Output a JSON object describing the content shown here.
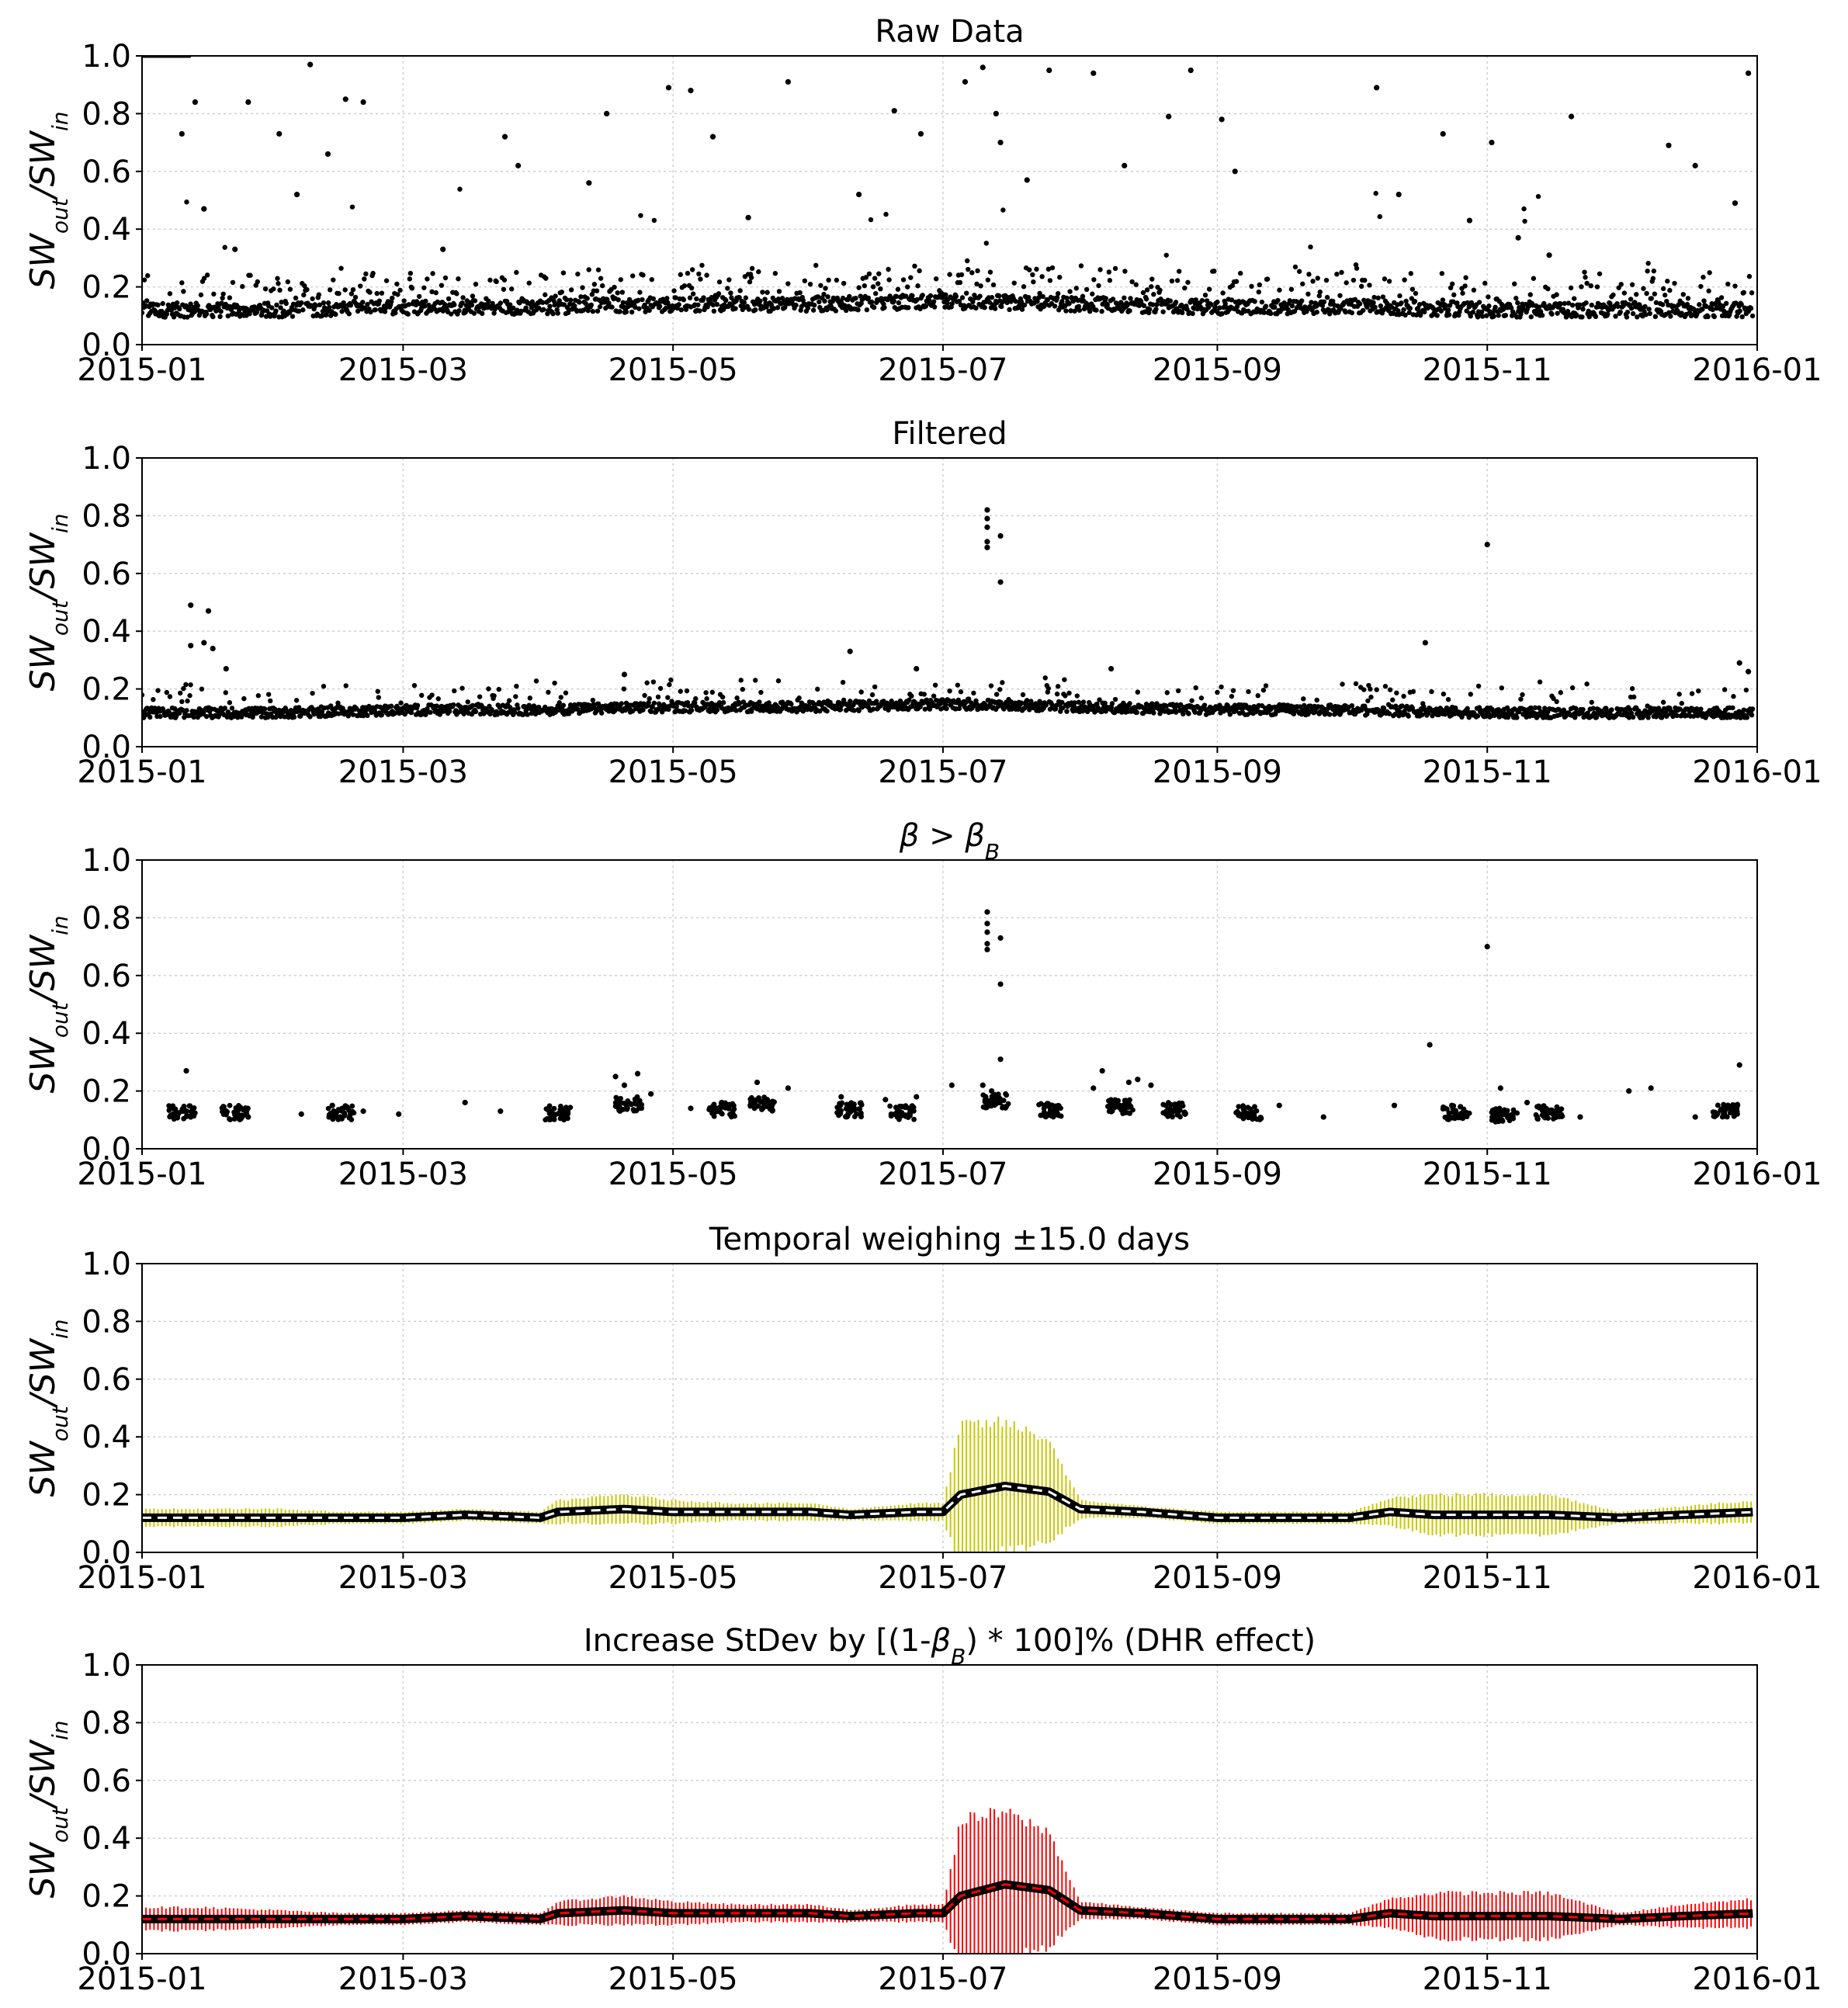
{
  "chart_data": [
    {
      "type": "scatter",
      "panel": "raw",
      "title": "Raw Data",
      "ylabel": {
        "base1": "SW",
        "sub1": "out",
        "sep": "/",
        "base2": "SW",
        "sub2": "in"
      },
      "ylim": [
        0,
        1
      ],
      "xlim": [
        "2015-01-01",
        "2016-01-01"
      ],
      "yticks": [
        "0.0",
        "0.2",
        "0.4",
        "0.6",
        "0.8",
        "1.0"
      ],
      "xticks": [
        "2015-01",
        "2015-03",
        "2015-05",
        "2015-07",
        "2015-09",
        "2015-11",
        "2016-01"
      ],
      "grid": true,
      "color": "#000000",
      "baseline": {
        "x": [
          "2015-01-01",
          "2015-02-01",
          "2015-03-01",
          "2015-04-01",
          "2015-05-01",
          "2015-06-01",
          "2015-07-01",
          "2015-08-01",
          "2015-09-01",
          "2015-10-01",
          "2015-11-01",
          "2015-12-01",
          "2016-01-01"
        ],
        "y": [
          0.11,
          0.11,
          0.12,
          0.12,
          0.13,
          0.13,
          0.14,
          0.13,
          0.12,
          0.12,
          0.11,
          0.11,
          0.11
        ]
      },
      "scatter_points": [
        {
          "x": "2015-01-13",
          "y": 0.84
        },
        {
          "x": "2015-01-25",
          "y": 0.84
        },
        {
          "x": "2015-02-08",
          "y": 0.97
        },
        {
          "x": "2015-02-16",
          "y": 0.85
        },
        {
          "x": "2015-02-20",
          "y": 0.84
        },
        {
          "x": "2015-01-10",
          "y": 0.73
        },
        {
          "x": "2015-02-01",
          "y": 0.73
        },
        {
          "x": "2015-02-12",
          "y": 0.66
        },
        {
          "x": "2015-03-24",
          "y": 0.72
        },
        {
          "x": "2015-03-27",
          "y": 0.62
        },
        {
          "x": "2015-04-16",
          "y": 0.8
        },
        {
          "x": "2015-04-30",
          "y": 0.89
        },
        {
          "x": "2015-05-05",
          "y": 0.88
        },
        {
          "x": "2015-05-10",
          "y": 0.72
        },
        {
          "x": "2015-05-27",
          "y": 0.91
        },
        {
          "x": "2015-06-20",
          "y": 0.81
        },
        {
          "x": "2015-06-26",
          "y": 0.73
        },
        {
          "x": "2015-07-06",
          "y": 0.91
        },
        {
          "x": "2015-07-10",
          "y": 0.96
        },
        {
          "x": "2015-07-13",
          "y": 0.8
        },
        {
          "x": "2015-07-14",
          "y": 0.7
        },
        {
          "x": "2015-07-25",
          "y": 0.95
        },
        {
          "x": "2015-08-04",
          "y": 0.94
        },
        {
          "x": "2015-08-21",
          "y": 0.79
        },
        {
          "x": "2015-08-26",
          "y": 0.95
        },
        {
          "x": "2015-09-02",
          "y": 0.78
        },
        {
          "x": "2015-10-07",
          "y": 0.89
        },
        {
          "x": "2015-10-22",
          "y": 0.73
        },
        {
          "x": "2015-11-02",
          "y": 0.7
        },
        {
          "x": "2015-11-20",
          "y": 0.79
        },
        {
          "x": "2015-12-12",
          "y": 0.69
        },
        {
          "x": "2015-12-18",
          "y": 0.62
        },
        {
          "x": "2015-12-27",
          "y": 0.49
        },
        {
          "x": "2015-12-30",
          "y": 0.94
        },
        {
          "x": "2015-01-15",
          "y": 0.47
        },
        {
          "x": "2015-01-22",
          "y": 0.33
        },
        {
          "x": "2015-02-05",
          "y": 0.52
        },
        {
          "x": "2015-03-10",
          "y": 0.33
        },
        {
          "x": "2015-04-12",
          "y": 0.56
        },
        {
          "x": "2015-05-18",
          "y": 0.44
        },
        {
          "x": "2015-06-12",
          "y": 0.52
        },
        {
          "x": "2015-07-20",
          "y": 0.57
        },
        {
          "x": "2015-08-11",
          "y": 0.62
        },
        {
          "x": "2015-09-05",
          "y": 0.6
        },
        {
          "x": "2015-10-12",
          "y": 0.52
        },
        {
          "x": "2015-10-28",
          "y": 0.43
        },
        {
          "x": "2015-11-08",
          "y": 0.37
        },
        {
          "x": "2015-11-15",
          "y": 0.31
        }
      ]
    },
    {
      "type": "scatter",
      "panel": "filtered",
      "title": "Filtered",
      "ylabel": {
        "base1": "SW",
        "sub1": "out",
        "sep": "/",
        "base2": "SW",
        "sub2": "in"
      },
      "ylim": [
        0,
        1
      ],
      "xlim": [
        "2015-01-01",
        "2016-01-01"
      ],
      "yticks": [
        "0.0",
        "0.2",
        "0.4",
        "0.6",
        "0.8",
        "1.0"
      ],
      "xticks": [
        "2015-01",
        "2015-03",
        "2015-05",
        "2015-07",
        "2015-09",
        "2015-11",
        "2016-01"
      ],
      "grid": true,
      "color": "#000000",
      "baseline": {
        "x": [
          "2015-01-01",
          "2015-02-01",
          "2015-03-01",
          "2015-04-01",
          "2015-05-01",
          "2015-06-01",
          "2015-07-01",
          "2015-08-01",
          "2015-09-01",
          "2015-10-01",
          "2015-11-01",
          "2015-12-01",
          "2016-01-01"
        ],
        "y": [
          0.11,
          0.11,
          0.12,
          0.12,
          0.13,
          0.13,
          0.14,
          0.13,
          0.12,
          0.12,
          0.11,
          0.11,
          0.11
        ]
      },
      "scatter_points": [
        {
          "x": "2015-01-12",
          "y": 0.49
        },
        {
          "x": "2015-01-16",
          "y": 0.47
        },
        {
          "x": "2015-01-12",
          "y": 0.35
        },
        {
          "x": "2015-01-15",
          "y": 0.36
        },
        {
          "x": "2015-01-17",
          "y": 0.34
        },
        {
          "x": "2015-01-20",
          "y": 0.27
        },
        {
          "x": "2015-07-11",
          "y": 0.82
        },
        {
          "x": "2015-07-11",
          "y": 0.79
        },
        {
          "x": "2015-07-11",
          "y": 0.76
        },
        {
          "x": "2015-07-11",
          "y": 0.71
        },
        {
          "x": "2015-07-11",
          "y": 0.69
        },
        {
          "x": "2015-07-14",
          "y": 0.73
        },
        {
          "x": "2015-07-14",
          "y": 0.57
        },
        {
          "x": "2015-11-01",
          "y": 0.7
        },
        {
          "x": "2015-10-18",
          "y": 0.36
        },
        {
          "x": "2015-06-10",
          "y": 0.33
        },
        {
          "x": "2015-12-28",
          "y": 0.29
        },
        {
          "x": "2015-12-30",
          "y": 0.26
        },
        {
          "x": "2015-04-20",
          "y": 0.25
        },
        {
          "x": "2015-06-25",
          "y": 0.27
        },
        {
          "x": "2015-08-08",
          "y": 0.27
        }
      ]
    },
    {
      "type": "scatter",
      "panel": "beta",
      "title": {
        "a": "β",
        "op": " > ",
        "b": "β",
        "bsub": "B"
      },
      "ylabel": {
        "base1": "SW",
        "sub1": "out",
        "sep": "/",
        "base2": "SW",
        "sub2": "in"
      },
      "ylim": [
        0,
        1
      ],
      "xlim": [
        "2015-01-01",
        "2016-01-01"
      ],
      "yticks": [
        "0.0",
        "0.2",
        "0.4",
        "0.6",
        "0.8",
        "1.0"
      ],
      "xticks": [
        "2015-01",
        "2015-03",
        "2015-05",
        "2015-07",
        "2015-09",
        "2015-11",
        "2016-01"
      ],
      "grid": true,
      "color": "#000000",
      "scatter_points": [
        {
          "x": "2015-01-11",
          "y": 0.27
        },
        {
          "x": "2015-01-10",
          "y": 0.13
        },
        {
          "x": "2015-01-12",
          "y": 0.11
        },
        {
          "x": "2015-01-20",
          "y": 0.13
        },
        {
          "x": "2015-01-25",
          "y": 0.11
        },
        {
          "x": "2015-02-06",
          "y": 0.12
        },
        {
          "x": "2015-02-13",
          "y": 0.15
        },
        {
          "x": "2015-02-20",
          "y": 0.13
        },
        {
          "x": "2015-02-28",
          "y": 0.12
        },
        {
          "x": "2015-03-15",
          "y": 0.16
        },
        {
          "x": "2015-03-23",
          "y": 0.13
        },
        {
          "x": "2015-04-04",
          "y": 0.12
        },
        {
          "x": "2015-04-18",
          "y": 0.25
        },
        {
          "x": "2015-04-20",
          "y": 0.22
        },
        {
          "x": "2015-04-23",
          "y": 0.26
        },
        {
          "x": "2015-04-26",
          "y": 0.19
        },
        {
          "x": "2015-05-05",
          "y": 0.14
        },
        {
          "x": "2015-05-12",
          "y": 0.16
        },
        {
          "x": "2015-05-20",
          "y": 0.23
        },
        {
          "x": "2015-05-27",
          "y": 0.21
        },
        {
          "x": "2015-06-08",
          "y": 0.18
        },
        {
          "x": "2015-06-18",
          "y": 0.17
        },
        {
          "x": "2015-06-25",
          "y": 0.18
        },
        {
          "x": "2015-07-03",
          "y": 0.22
        },
        {
          "x": "2015-07-11",
          "y": 0.82
        },
        {
          "x": "2015-07-11",
          "y": 0.78
        },
        {
          "x": "2015-07-11",
          "y": 0.75
        },
        {
          "x": "2015-07-11",
          "y": 0.71
        },
        {
          "x": "2015-07-11",
          "y": 0.69
        },
        {
          "x": "2015-07-14",
          "y": 0.73
        },
        {
          "x": "2015-07-14",
          "y": 0.57
        },
        {
          "x": "2015-07-14",
          "y": 0.31
        },
        {
          "x": "2015-07-10",
          "y": 0.22
        },
        {
          "x": "2015-07-12",
          "y": 0.2
        },
        {
          "x": "2015-07-24",
          "y": 0.15
        },
        {
          "x": "2015-08-04",
          "y": 0.21
        },
        {
          "x": "2015-08-06",
          "y": 0.27
        },
        {
          "x": "2015-08-12",
          "y": 0.23
        },
        {
          "x": "2015-08-14",
          "y": 0.24
        },
        {
          "x": "2015-08-17",
          "y": 0.22
        },
        {
          "x": "2015-08-23",
          "y": 0.13
        },
        {
          "x": "2015-09-06",
          "y": 0.12
        },
        {
          "x": "2015-09-15",
          "y": 0.15
        },
        {
          "x": "2015-09-25",
          "y": 0.11
        },
        {
          "x": "2015-10-11",
          "y": 0.15
        },
        {
          "x": "2015-10-19",
          "y": 0.36
        },
        {
          "x": "2015-10-24",
          "y": 0.15
        },
        {
          "x": "2015-11-01",
          "y": 0.7
        },
        {
          "x": "2015-11-04",
          "y": 0.21
        },
        {
          "x": "2015-11-10",
          "y": 0.16
        },
        {
          "x": "2015-11-22",
          "y": 0.11
        },
        {
          "x": "2015-12-03",
          "y": 0.2
        },
        {
          "x": "2015-12-08",
          "y": 0.21
        },
        {
          "x": "2015-12-18",
          "y": 0.11
        },
        {
          "x": "2015-12-27",
          "y": 0.15
        },
        {
          "x": "2015-12-28",
          "y": 0.29
        }
      ],
      "clusters": [
        {
          "x": "2015-01-10",
          "y": 0.12
        },
        {
          "x": "2015-01-22",
          "y": 0.12
        },
        {
          "x": "2015-02-15",
          "y": 0.12
        },
        {
          "x": "2015-04-05",
          "y": 0.12
        },
        {
          "x": "2015-04-21",
          "y": 0.15
        },
        {
          "x": "2015-05-12",
          "y": 0.13
        },
        {
          "x": "2015-05-21",
          "y": 0.15
        },
        {
          "x": "2015-06-10",
          "y": 0.13
        },
        {
          "x": "2015-06-22",
          "y": 0.12
        },
        {
          "x": "2015-07-13",
          "y": 0.16
        },
        {
          "x": "2015-07-25",
          "y": 0.13
        },
        {
          "x": "2015-08-10",
          "y": 0.14
        },
        {
          "x": "2015-08-22",
          "y": 0.13
        },
        {
          "x": "2015-09-08",
          "y": 0.12
        },
        {
          "x": "2015-10-25",
          "y": 0.12
        },
        {
          "x": "2015-11-05",
          "y": 0.11
        },
        {
          "x": "2015-11-15",
          "y": 0.12
        },
        {
          "x": "2015-12-25",
          "y": 0.13
        }
      ]
    },
    {
      "type": "line",
      "panel": "temporal",
      "title": "Temporal weighing  ±15.0 days",
      "ylabel": {
        "base1": "SW",
        "sub1": "out",
        "sep": "/",
        "base2": "SW",
        "sub2": "in"
      },
      "ylim": [
        0,
        1
      ],
      "xlim": [
        "2015-01-01",
        "2016-01-01"
      ],
      "yticks": [
        "0.0",
        "0.2",
        "0.4",
        "0.6",
        "0.8",
        "1.0"
      ],
      "xticks": [
        "2015-01",
        "2015-03",
        "2015-05",
        "2015-07",
        "2015-09",
        "2015-11",
        "2016-01"
      ],
      "grid": true,
      "errorbar_color": "#c8c800",
      "line_color": "#000000",
      "dash_color": "#ffffff",
      "series": {
        "x": [
          "2015-01-01",
          "2015-01-15",
          "2015-02-01",
          "2015-02-15",
          "2015-03-01",
          "2015-03-15",
          "2015-04-01",
          "2015-04-05",
          "2015-04-20",
          "2015-05-01",
          "2015-05-15",
          "2015-06-01",
          "2015-06-10",
          "2015-06-25",
          "2015-07-01",
          "2015-07-05",
          "2015-07-15",
          "2015-07-25",
          "2015-08-01",
          "2015-08-15",
          "2015-09-01",
          "2015-09-15",
          "2015-10-01",
          "2015-10-10",
          "2015-10-20",
          "2015-11-01",
          "2015-11-15",
          "2015-12-01",
          "2015-12-15",
          "2016-01-01"
        ],
        "y": [
          0.12,
          0.12,
          0.12,
          0.12,
          0.12,
          0.13,
          0.12,
          0.14,
          0.15,
          0.14,
          0.14,
          0.14,
          0.13,
          0.14,
          0.14,
          0.2,
          0.23,
          0.21,
          0.15,
          0.14,
          0.12,
          0.12,
          0.12,
          0.14,
          0.13,
          0.13,
          0.13,
          0.12,
          0.13,
          0.14
        ],
        "err": [
          0.03,
          0.03,
          0.03,
          0.02,
          0.02,
          0.02,
          0.02,
          0.04,
          0.05,
          0.04,
          0.03,
          0.03,
          0.02,
          0.03,
          0.03,
          0.24,
          0.22,
          0.18,
          0.03,
          0.02,
          0.02,
          0.02,
          0.02,
          0.05,
          0.07,
          0.07,
          0.07,
          0.02,
          0.03,
          0.04
        ]
      }
    },
    {
      "type": "line",
      "panel": "dhr",
      "title": {
        "pre": "Increase StDev by [(1-",
        "b": "β",
        "bsub": "B",
        "post": ") * 100]% (DHR effect)"
      },
      "ylabel": {
        "base1": "SW",
        "sub1": "out",
        "sep": "/",
        "base2": "SW",
        "sub2": "in"
      },
      "ylim": [
        0,
        1
      ],
      "xlim": [
        "2015-01-01",
        "2016-01-01"
      ],
      "yticks": [
        "0.0",
        "0.2",
        "0.4",
        "0.6",
        "0.8",
        "1.0"
      ],
      "xticks": [
        "2015-01",
        "2015-03",
        "2015-05",
        "2015-07",
        "2015-09",
        "2015-11",
        "2016-01"
      ],
      "grid": true,
      "errorbar_color": "#ff0000",
      "line_color": "#000000",
      "dash_color": "#ff0000",
      "series": {
        "x": [
          "2015-01-01",
          "2015-01-15",
          "2015-02-01",
          "2015-02-15",
          "2015-03-01",
          "2015-03-15",
          "2015-04-01",
          "2015-04-05",
          "2015-04-20",
          "2015-05-01",
          "2015-05-15",
          "2015-06-01",
          "2015-06-10",
          "2015-06-25",
          "2015-07-01",
          "2015-07-05",
          "2015-07-15",
          "2015-07-25",
          "2015-08-01",
          "2015-08-15",
          "2015-09-01",
          "2015-09-15",
          "2015-10-01",
          "2015-10-10",
          "2015-10-20",
          "2015-11-01",
          "2015-11-15",
          "2015-12-01",
          "2015-12-15",
          "2016-01-01"
        ],
        "y": [
          0.12,
          0.12,
          0.12,
          0.12,
          0.12,
          0.13,
          0.12,
          0.14,
          0.15,
          0.14,
          0.14,
          0.14,
          0.13,
          0.14,
          0.14,
          0.2,
          0.24,
          0.22,
          0.15,
          0.14,
          0.12,
          0.12,
          0.12,
          0.14,
          0.13,
          0.13,
          0.13,
          0.12,
          0.13,
          0.14
        ],
        "err": [
          0.04,
          0.04,
          0.03,
          0.02,
          0.02,
          0.02,
          0.02,
          0.04,
          0.05,
          0.04,
          0.03,
          0.03,
          0.02,
          0.03,
          0.03,
          0.26,
          0.25,
          0.2,
          0.03,
          0.02,
          0.02,
          0.02,
          0.02,
          0.05,
          0.08,
          0.08,
          0.08,
          0.02,
          0.04,
          0.05
        ]
      }
    }
  ]
}
